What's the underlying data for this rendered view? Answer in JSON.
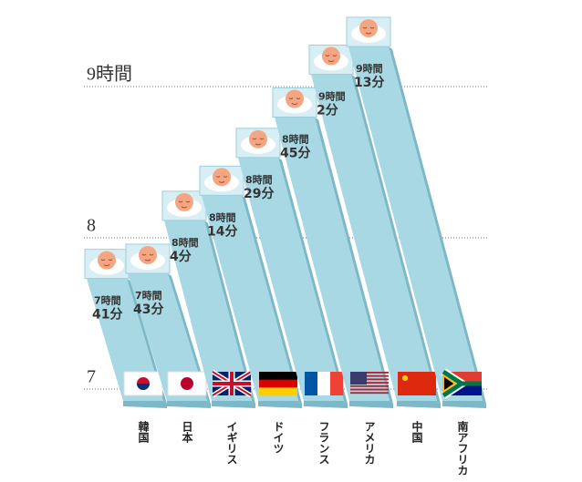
{
  "chart_data": {
    "type": "bar",
    "categories": [
      "韓国",
      "日本",
      "イギリス",
      "ドイツ",
      "フランス",
      "アメリカ",
      "中国",
      "南アフリカ"
    ],
    "values": [
      7.683,
      7.717,
      8.067,
      8.233,
      8.483,
      8.75,
      9.033,
      9.217
    ],
    "value_labels": [
      [
        "7時間",
        "41分"
      ],
      [
        "7時間",
        "43分"
      ],
      [
        "8時間",
        "4分"
      ],
      [
        "8時間",
        "14分"
      ],
      [
        "8時間",
        "29分"
      ],
      [
        "8時間",
        "45分"
      ],
      [
        "9時間",
        "2分"
      ],
      [
        "9時間",
        "13分"
      ]
    ],
    "color": "#a8d8e3",
    "ylim": [
      6.9,
      9.45
    ],
    "yticks": [
      7,
      8,
      {
        "value": 9,
        "label": "9時間"
      }
    ],
    "grid": true
  }
}
